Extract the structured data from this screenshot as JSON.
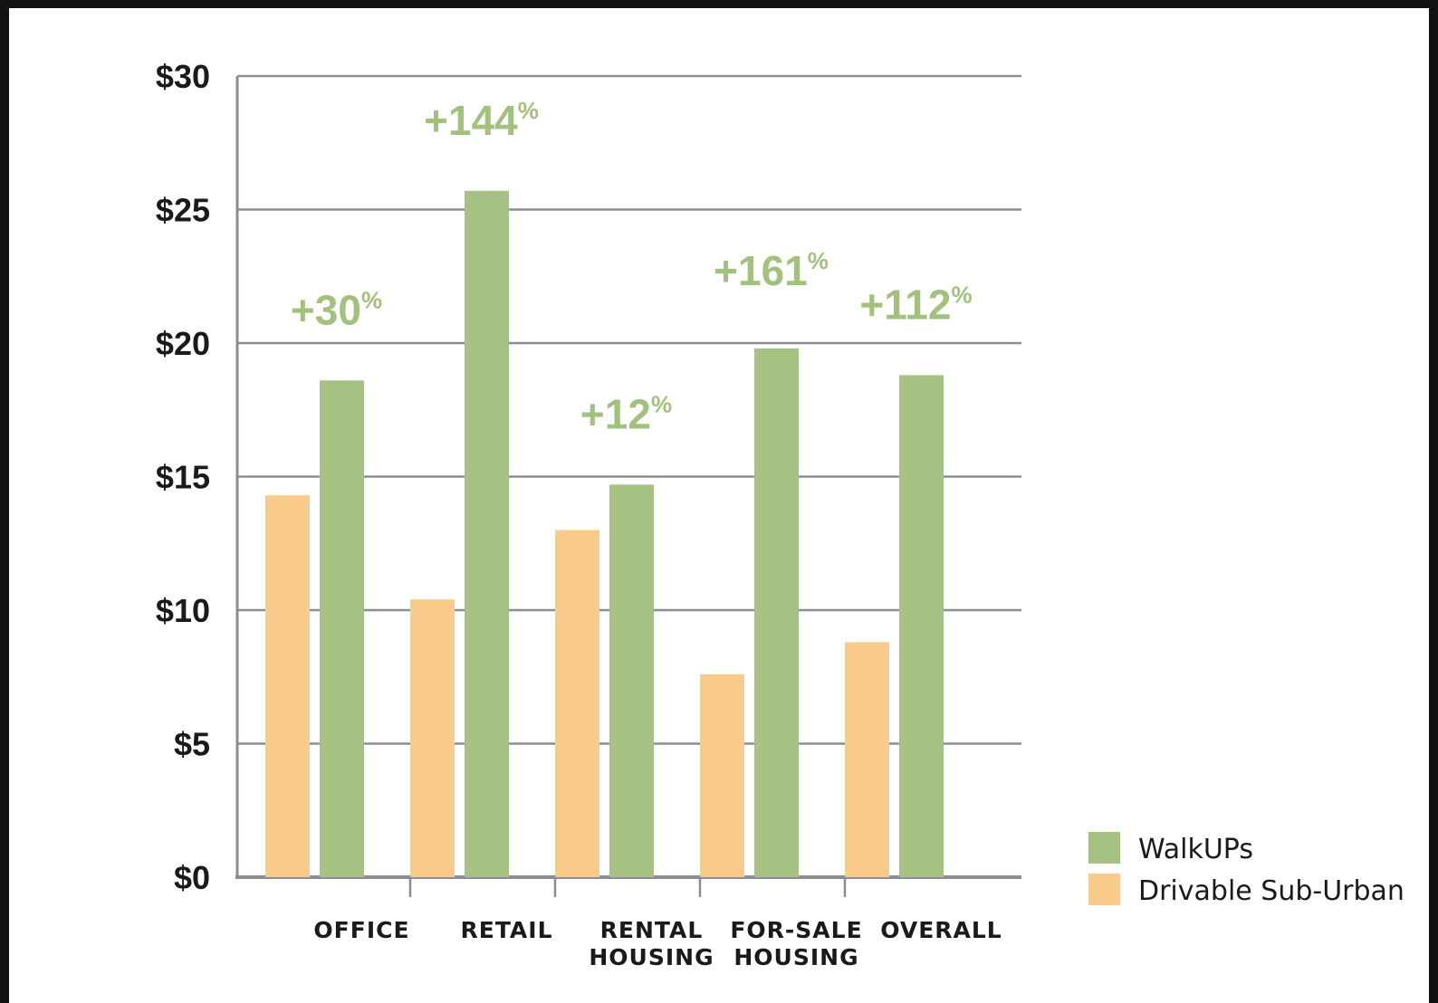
{
  "chart_data": {
    "type": "bar",
    "title": "",
    "xlabel": "",
    "ylabel": "",
    "ylim": [
      0,
      30
    ],
    "yticks": [
      "$0",
      "$5",
      "$10",
      "$15",
      "$20",
      "$25",
      "$30"
    ],
    "categories": [
      [
        "OFFICE"
      ],
      [
        "RETAIL"
      ],
      [
        "RENTAL",
        "HOUSING"
      ],
      [
        "FOR-SALE",
        "HOUSING"
      ],
      [
        "OVERALL"
      ]
    ],
    "series": [
      {
        "name": "Drivable Sub-Urban",
        "color": "#f8cb8a",
        "values": [
          14.3,
          10.4,
          13.0,
          7.6,
          8.8
        ]
      },
      {
        "name": "WalkUPs",
        "color": "#a6c283",
        "values": [
          18.6,
          25.7,
          14.7,
          19.8,
          18.8
        ]
      }
    ],
    "annotations": [
      {
        "value": "+30",
        "unit": "%"
      },
      {
        "value": "+144",
        "unit": "%"
      },
      {
        "value": "+12",
        "unit": "%"
      },
      {
        "value": "+161",
        "unit": "%"
      },
      {
        "value": "+112",
        "unit": "%"
      }
    ],
    "legend": {
      "position": "bottom-right",
      "entries": [
        "WalkUPs",
        "Drivable Sub-Urban"
      ]
    },
    "grid": true
  }
}
